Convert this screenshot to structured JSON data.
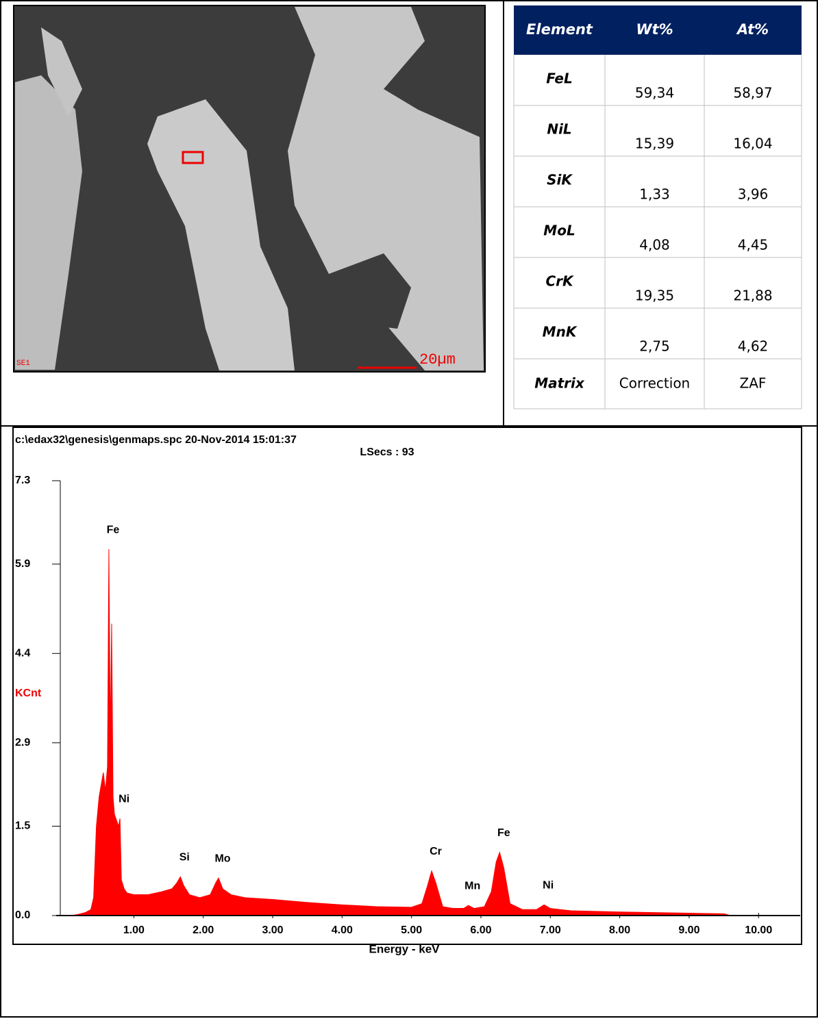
{
  "image": {
    "label": "SE1",
    "scale": "20µm"
  },
  "table": {
    "header": [
      "Element",
      "Wt%",
      "At%"
    ],
    "rows": [
      [
        "FeL",
        "59,34",
        "58,97"
      ],
      [
        "NiL",
        "15,39",
        "16,04"
      ],
      [
        "SiK",
        "1,33",
        "3,96"
      ],
      [
        "MoL",
        "4,08",
        "4,45"
      ],
      [
        "CrK",
        "19,35",
        "21,88"
      ],
      [
        "MnK",
        "2,75",
        "4,62"
      ],
      [
        "Matrix",
        "Correction",
        "ZAF"
      ]
    ]
  },
  "chart_data": {
    "type": "area",
    "file_info": "c:\\edax32\\genesis\\genmaps.spc  20-Nov-2014 15:01:37",
    "live_time": "LSecs : 93",
    "x_label": "Energy - keV",
    "y_label": "KCnt",
    "color": "#ff0000",
    "x": [
      0.1,
      0.2,
      0.3,
      0.38,
      0.42,
      0.46,
      0.5,
      0.53,
      0.56,
      0.59,
      0.62,
      0.64,
      0.66,
      0.68,
      0.7,
      0.72,
      0.75,
      0.78,
      0.8,
      0.82,
      0.86,
      0.9,
      1.0,
      1.2,
      1.4,
      1.55,
      1.62,
      1.67,
      1.72,
      1.8,
      1.95,
      2.1,
      2.18,
      2.22,
      2.28,
      2.4,
      2.6,
      3.0,
      3.5,
      4.0,
      4.5,
      5.0,
      5.15,
      5.23,
      5.29,
      5.35,
      5.45,
      5.6,
      5.75,
      5.82,
      5.9,
      6.05,
      6.15,
      6.22,
      6.27,
      6.33,
      6.42,
      6.6,
      6.8,
      6.91,
      7.0,
      7.3,
      8.0,
      9.0,
      9.5,
      9.6,
      10.0
    ],
    "values": [
      0,
      0.02,
      0.05,
      0.1,
      0.3,
      1.5,
      2.0,
      2.2,
      2.4,
      2.1,
      2.5,
      6.15,
      3.0,
      4.9,
      2.0,
      1.7,
      1.6,
      1.5,
      1.63,
      0.6,
      0.45,
      0.38,
      0.35,
      0.35,
      0.4,
      0.45,
      0.55,
      0.65,
      0.5,
      0.35,
      0.3,
      0.35,
      0.55,
      0.63,
      0.45,
      0.35,
      0.3,
      0.27,
      0.22,
      0.18,
      0.15,
      0.14,
      0.2,
      0.5,
      0.75,
      0.55,
      0.15,
      0.12,
      0.12,
      0.17,
      0.12,
      0.15,
      0.4,
      0.9,
      1.06,
      0.8,
      0.2,
      0.1,
      0.1,
      0.18,
      0.12,
      0.08,
      0.06,
      0.04,
      0.03,
      0,
      0
    ],
    "peak_labels": [
      {
        "label": "Fe",
        "x": 0.64
      },
      {
        "label": "Ni",
        "x": 0.8
      },
      {
        "label": "Si",
        "x": 1.67
      },
      {
        "label": "Mo",
        "x": 2.22
      },
      {
        "label": "Cr",
        "x": 5.29
      },
      {
        "label": "Mn",
        "x": 5.82
      },
      {
        "label": "Fe",
        "x": 6.27
      },
      {
        "label": "Ni",
        "x": 6.91
      }
    ],
    "xlim": [
      -0.06,
      10.6
    ],
    "ylim": [
      0,
      7.3
    ],
    "xticks": [
      {
        "value": 1,
        "label": "1.00"
      },
      {
        "value": 2,
        "label": "2.00"
      },
      {
        "value": 3,
        "label": "3.00"
      },
      {
        "value": 4,
        "label": "4.00"
      },
      {
        "value": 5,
        "label": "5.00"
      },
      {
        "value": 6,
        "label": "6.00"
      },
      {
        "value": 7,
        "label": "7.00"
      },
      {
        "value": 8,
        "label": "8.00"
      },
      {
        "value": 9,
        "label": "9.00"
      },
      {
        "value": 10,
        "label": "10.00"
      }
    ],
    "yticks": [
      {
        "value": 0,
        "label": "0.0"
      },
      1.5,
      2.9,
      4.4,
      5.9,
      7.3
    ]
  }
}
